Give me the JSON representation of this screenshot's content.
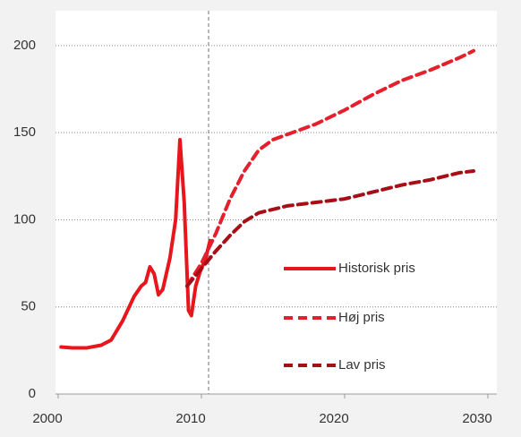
{
  "chart_data": {
    "type": "line",
    "xlim": [
      2000,
      2030
    ],
    "xticks": [
      2000,
      2010,
      2020,
      2030
    ],
    "ylim": [
      0,
      220
    ],
    "yticks": [
      0,
      50,
      100,
      150,
      200
    ],
    "grid": true,
    "vline": 2010.5,
    "legend": "lower right",
    "series": [
      {
        "name": "Historisk pris",
        "color": "#e8161c",
        "dash": "solid",
        "x": [
          2000.2,
          2001,
          2002,
          2003,
          2003.7,
          2004.5,
          2005.3,
          2005.8,
          2006.1,
          2006.4,
          2006.7,
          2007,
          2007.3,
          2007.8,
          2008.2,
          2008.5,
          2008.8,
          2009.1,
          2009.3,
          2009.6,
          2009.9,
          2010.3,
          2010.6
        ],
        "values": [
          27,
          26.5,
          26.5,
          28,
          31,
          42,
          56,
          62,
          64,
          73,
          69,
          57,
          60,
          78,
          100,
          146,
          110,
          48,
          45,
          62,
          70,
          78,
          88
        ]
      },
      {
        "name": "Høj pris",
        "color": "#e3202b",
        "dash": "dashed",
        "x": [
          2009,
          2010,
          2011,
          2012,
          2013,
          2014,
          2015,
          2016,
          2018,
          2020,
          2022,
          2024,
          2026,
          2028,
          2029
        ],
        "values": [
          62,
          75,
          92,
          112,
          128,
          140,
          146,
          149,
          155,
          163,
          172,
          180,
          186,
          193,
          197
        ]
      },
      {
        "name": "Lav pris",
        "color": "#a50f15",
        "dash": "dashed",
        "x": [
          2009,
          2010,
          2011,
          2012,
          2013,
          2014,
          2015,
          2016,
          2018,
          2020,
          2022,
          2024,
          2026,
          2028,
          2029
        ],
        "values": [
          62,
          72,
          82,
          91,
          99,
          104,
          106,
          108,
          110,
          112,
          116,
          120,
          123,
          127,
          128
        ]
      }
    ]
  }
}
